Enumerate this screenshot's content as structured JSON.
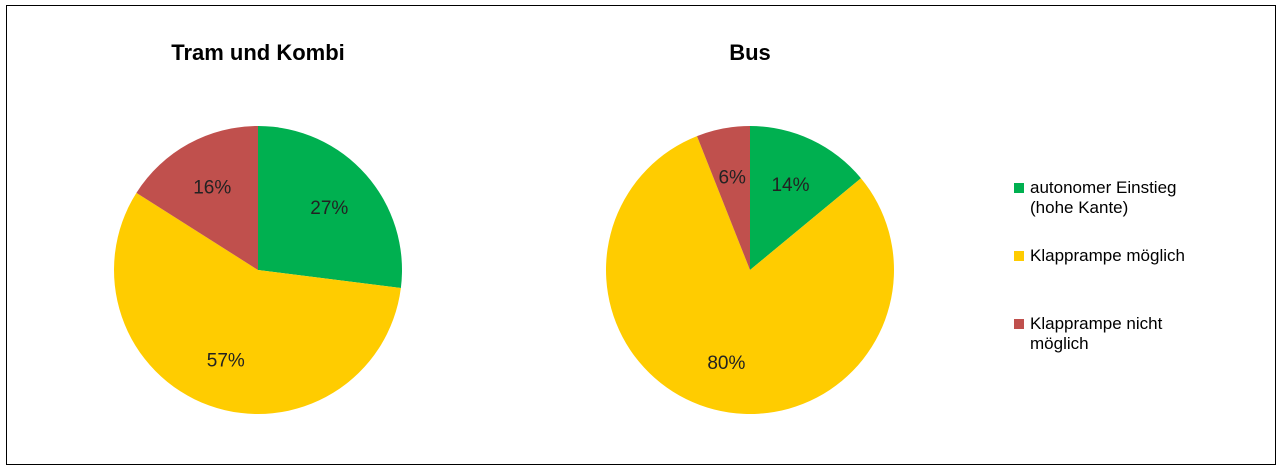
{
  "categories": [
    "autonomer Einstieg (hohe Kante)",
    "Klapprampe möglich",
    "Klapprampe nicht möglich"
  ],
  "colors": [
    "#00b050",
    "#ffcc00",
    "#c0504d"
  ],
  "chart_data": [
    {
      "type": "pie",
      "title": "Tram und Kombi",
      "categories": [
        "autonomer Einstieg (hohe Kante)",
        "Klapprampe möglich",
        "Klapprampe nicht möglich"
      ],
      "values": [
        27,
        57,
        16
      ],
      "labels": [
        "27%",
        "57%",
        "16%"
      ]
    },
    {
      "type": "pie",
      "title": "Bus",
      "categories": [
        "autonomer Einstieg (hohe Kante)",
        "Klapprampe möglich",
        "Klapprampe nicht möglich"
      ],
      "values": [
        14,
        80,
        6
      ],
      "labels": [
        "14%",
        "80%",
        "6%"
      ]
    }
  ],
  "legend": {
    "items": [
      {
        "text_line1": "autonomer Einstieg",
        "text_line2": "(hohe Kante)"
      },
      {
        "text_line1": "Klapprampe möglich",
        "text_line2": ""
      },
      {
        "text_line1": "Klapprampe nicht",
        "text_line2": "möglich"
      }
    ]
  }
}
